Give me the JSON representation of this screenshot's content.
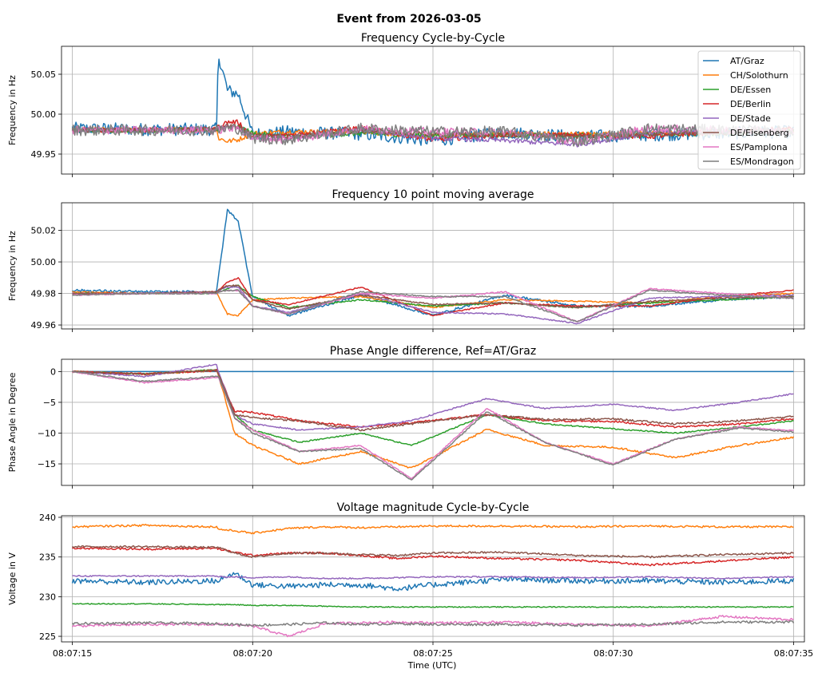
{
  "figure": {
    "suptitle": "Event from 2026-03-05",
    "xlabel": "Time (UTC)"
  },
  "series_meta": [
    {
      "name": "AT/Graz",
      "color": "#1f77b4"
    },
    {
      "name": "CH/Solothurn",
      "color": "#ff7f0e"
    },
    {
      "name": "DE/Essen",
      "color": "#2ca02c"
    },
    {
      "name": "DE/Berlin",
      "color": "#d62728"
    },
    {
      "name": "DE/Stade",
      "color": "#9467bd"
    },
    {
      "name": "DE/Eisenberg",
      "color": "#8c564b"
    },
    {
      "name": "ES/Pamplona",
      "color": "#e377c2"
    },
    {
      "name": "ES/Mondragon",
      "color": "#7f7f7f"
    }
  ],
  "x_ticks": [
    "08:07:15",
    "08:07:20",
    "08:07:25",
    "08:07:30",
    "08:07:35"
  ],
  "chart_data": [
    {
      "type": "line",
      "title": "Frequency Cycle-by-Cycle",
      "ylabel": "Frequency in Hz",
      "xlabel": "",
      "x": [
        0,
        2,
        4,
        4.05,
        4.3,
        4.6,
        5,
        6,
        8,
        10,
        12,
        14,
        16,
        18,
        20
      ],
      "xlim": [
        -0.3,
        20.3
      ],
      "ylim": [
        49.925,
        50.085
      ],
      "yticks": [
        49.95,
        50.0,
        50.05
      ],
      "yticklabels": [
        "49.95",
        "50.00",
        "50.05"
      ],
      "grid": true,
      "legend": "top-right",
      "series": [
        {
          "name": "AT/Graz",
          "values": [
            49.982,
            49.981,
            49.981,
            50.075,
            50.03,
            50.025,
            49.975,
            49.978,
            49.975,
            49.967,
            49.977,
            49.972,
            49.974,
            49.976,
            49.978
          ],
          "noise": 0.008
        },
        {
          "name": "CH/Solothurn",
          "values": [
            49.981,
            49.98,
            49.981,
            49.97,
            49.966,
            49.968,
            49.976,
            49.978,
            49.978,
            49.972,
            49.976,
            49.975,
            49.976,
            49.978,
            49.98
          ],
          "noise": 0.003
        },
        {
          "name": "DE/Essen",
          "values": [
            49.98,
            49.98,
            49.98,
            49.982,
            49.985,
            49.985,
            49.976,
            49.972,
            49.976,
            49.973,
            49.974,
            49.973,
            49.974,
            49.976,
            49.978
          ],
          "noise": 0.003
        },
        {
          "name": "DE/Berlin",
          "values": [
            49.98,
            49.98,
            49.981,
            49.985,
            49.99,
            49.99,
            49.972,
            49.974,
            49.983,
            49.968,
            49.974,
            49.974,
            49.972,
            49.978,
            49.982
          ],
          "noise": 0.003
        },
        {
          "name": "DE/Stade",
          "values": [
            49.98,
            49.98,
            49.981,
            49.983,
            49.984,
            49.983,
            49.97,
            49.97,
            49.98,
            49.97,
            49.967,
            49.962,
            49.976,
            49.978,
            49.979
          ],
          "noise": 0.003
        },
        {
          "name": "DE/Eisenberg",
          "values": [
            49.98,
            49.98,
            49.981,
            49.983,
            49.985,
            49.984,
            49.974,
            49.972,
            49.979,
            49.975,
            49.974,
            49.972,
            49.975,
            49.977,
            49.978
          ],
          "noise": 0.003
        },
        {
          "name": "ES/Pamplona",
          "values": [
            49.98,
            49.98,
            49.98,
            49.98,
            49.982,
            49.982,
            49.97,
            49.968,
            49.982,
            49.978,
            49.978,
            49.966,
            49.982,
            49.98,
            49.978
          ],
          "noise": 0.005
        },
        {
          "name": "ES/Mondragon",
          "values": [
            49.98,
            49.98,
            49.98,
            49.98,
            49.982,
            49.982,
            49.97,
            49.968,
            49.982,
            49.978,
            49.978,
            49.966,
            49.982,
            49.98,
            49.978
          ],
          "noise": 0.007
        }
      ]
    },
    {
      "type": "line",
      "title": "Frequency 10 point moving average",
      "ylabel": "Frequency in Hz",
      "xlabel": "",
      "x": [
        0,
        2,
        4,
        4.05,
        4.3,
        4.6,
        5,
        6,
        8,
        10,
        12,
        14,
        16,
        18,
        20
      ],
      "xlim": [
        -0.3,
        20.3
      ],
      "ylim": [
        49.9575,
        50.0375
      ],
      "yticks": [
        49.96,
        49.98,
        50.0,
        50.02
      ],
      "yticklabels": [
        "49.96",
        "49.98",
        "50.00",
        "50.02"
      ],
      "grid": true,
      "series": [
        {
          "name": "AT/Graz",
          "values": [
            49.982,
            49.981,
            49.981,
            49.99,
            50.033,
            50.026,
            49.978,
            49.966,
            49.979,
            49.966,
            49.979,
            49.972,
            49.972,
            49.976,
            49.978
          ],
          "noise": 0.0008
        },
        {
          "name": "CH/Solothurn",
          "values": [
            49.981,
            49.98,
            49.981,
            49.978,
            49.967,
            49.966,
            49.976,
            49.977,
            49.978,
            49.971,
            49.976,
            49.975,
            49.974,
            49.978,
            49.98
          ],
          "noise": 0.0004
        },
        {
          "name": "DE/Essen",
          "values": [
            49.98,
            49.98,
            49.98,
            49.981,
            49.983,
            49.985,
            49.978,
            49.971,
            49.976,
            49.972,
            49.974,
            49.971,
            49.974,
            49.976,
            49.978
          ],
          "noise": 0.0004
        },
        {
          "name": "DE/Berlin",
          "values": [
            49.98,
            49.98,
            49.981,
            49.982,
            49.987,
            49.99,
            49.976,
            49.973,
            49.984,
            49.966,
            49.974,
            49.972,
            49.972,
            49.978,
            49.982
          ],
          "noise": 0.0004
        },
        {
          "name": "DE/Stade",
          "values": [
            49.98,
            49.98,
            49.981,
            49.982,
            49.984,
            49.984,
            49.972,
            49.968,
            49.98,
            49.968,
            49.967,
            49.961,
            49.977,
            49.978,
            49.979
          ],
          "noise": 0.0004
        },
        {
          "name": "DE/Eisenberg",
          "values": [
            49.98,
            49.98,
            49.981,
            49.982,
            49.985,
            49.985,
            49.976,
            49.97,
            49.979,
            49.973,
            49.974,
            49.971,
            49.975,
            49.977,
            49.978
          ],
          "noise": 0.0004
        },
        {
          "name": "ES/Pamplona",
          "values": [
            49.979,
            49.98,
            49.98,
            49.981,
            49.982,
            49.982,
            49.972,
            49.967,
            49.98,
            49.977,
            49.981,
            49.962,
            49.983,
            49.98,
            49.977
          ],
          "noise": 0.0004
        },
        {
          "name": "ES/Mondragon",
          "values": [
            49.979,
            49.98,
            49.98,
            49.981,
            49.982,
            49.982,
            49.972,
            49.967,
            49.981,
            49.978,
            49.978,
            49.962,
            49.982,
            49.979,
            49.977
          ],
          "noise": 0.0004
        }
      ]
    },
    {
      "type": "line",
      "title": "Phase Angle difference, Ref=AT/Graz",
      "ylabel": "Phase Angle in Degree",
      "xlabel": "",
      "x": [
        0,
        2,
        4,
        4.05,
        4.5,
        5,
        6.3,
        8,
        9.4,
        11.5,
        13.1,
        15,
        16.7,
        18.5,
        20
      ],
      "xlim": [
        -0.3,
        20.3
      ],
      "ylim": [
        -18.5,
        2.0
      ],
      "yticks": [
        -15,
        -10,
        -5,
        0
      ],
      "yticklabels": [
        "−15",
        "−10",
        "−5",
        "0"
      ],
      "grid": true,
      "series": [
        {
          "name": "AT/Graz",
          "values": [
            0,
            0,
            0,
            0,
            0,
            0,
            0,
            0,
            0,
            0,
            0,
            0,
            0,
            0,
            0
          ],
          "noise": 0
        },
        {
          "name": "CH/Solothurn",
          "values": [
            0,
            -0.4,
            0.2,
            -0.5,
            -10,
            -12,
            -15,
            -13,
            -15.7,
            -9.4,
            -12,
            -12.3,
            -14,
            -12,
            -10.7
          ],
          "noise": 0.15
        },
        {
          "name": "DE/Essen",
          "values": [
            0,
            -0.4,
            0.3,
            -0.3,
            -7,
            -9.5,
            -11.5,
            -10,
            -12,
            -7,
            -8.5,
            -9.3,
            -10,
            -9,
            -8
          ],
          "noise": 0.1
        },
        {
          "name": "DE/Berlin",
          "values": [
            0,
            -0.4,
            0.2,
            -0.3,
            -6.5,
            -6.6,
            -8,
            -9,
            -8.3,
            -7,
            -8,
            -8.1,
            -9,
            -8.5,
            -7.7
          ],
          "noise": 0.15
        },
        {
          "name": "DE/Stade",
          "values": [
            0,
            -0.8,
            1.2,
            0,
            -7,
            -8.5,
            -9.5,
            -9,
            -8,
            -4.4,
            -6,
            -5.3,
            -6.3,
            -5,
            -3.6
          ],
          "noise": 0.1
        },
        {
          "name": "DE/Eisenberg",
          "values": [
            0,
            -0.4,
            0.2,
            -0.3,
            -7,
            -7.5,
            -8,
            -9.5,
            -8.5,
            -7,
            -7.8,
            -7.7,
            -8.5,
            -8,
            -7.3
          ],
          "noise": 0.15
        },
        {
          "name": "ES/Pamplona",
          "values": [
            0,
            -1.8,
            -1,
            -0.9,
            -7.5,
            -9.5,
            -13,
            -12,
            -17.4,
            -6,
            -11.5,
            -15,
            -11,
            -9,
            -9.6
          ],
          "noise": 0.1
        },
        {
          "name": "ES/Mondragon",
          "values": [
            0,
            -1.6,
            -0.8,
            -0.8,
            -7.5,
            -10,
            -13,
            -12.5,
            -17.6,
            -6.5,
            -11.5,
            -15.2,
            -11,
            -9.2,
            -9.8
          ],
          "noise": 0.1
        }
      ]
    },
    {
      "type": "line",
      "title": "Voltage magnitude Cycle-by-Cycle",
      "ylabel": "Voltage in V",
      "xlabel": "Time (UTC)",
      "x": [
        0,
        2,
        4,
        4.05,
        4.5,
        5,
        6,
        7,
        8,
        9,
        10,
        12,
        14,
        16,
        18,
        20
      ],
      "xlim": [
        -0.3,
        20.3
      ],
      "ylim": [
        224.3,
        240.2
      ],
      "yticks": [
        225,
        230,
        235,
        240
      ],
      "yticklabels": [
        "225",
        "230",
        "235",
        "240"
      ],
      "grid": true,
      "series": [
        {
          "name": "AT/Graz",
          "values": [
            232,
            231.8,
            232,
            232,
            233,
            231.5,
            231.3,
            231.5,
            231.5,
            231,
            231.5,
            232.2,
            232,
            232,
            231.8,
            232
          ],
          "noise": 0.35
        },
        {
          "name": "CH/Solothurn",
          "values": [
            238.8,
            239,
            238.8,
            238.5,
            238.3,
            238,
            238.6,
            238.8,
            238.7,
            238.8,
            238.9,
            238.9,
            238.8,
            238.9,
            238.8,
            238.8
          ],
          "noise": 0.12
        },
        {
          "name": "DE/Essen",
          "values": [
            229.1,
            229.1,
            229,
            229,
            229,
            228.9,
            228.9,
            228.8,
            228.7,
            228.7,
            228.7,
            228.7,
            228.7,
            228.7,
            228.7,
            228.7
          ],
          "noise": 0.06
        },
        {
          "name": "DE/Berlin",
          "values": [
            236.1,
            236,
            236.1,
            236,
            235.6,
            235.2,
            235.5,
            235.5,
            235.2,
            234.8,
            235.1,
            234.8,
            234.6,
            234,
            234.5,
            235
          ],
          "noise": 0.12
        },
        {
          "name": "DE/Stade",
          "values": [
            232.6,
            232.6,
            232.6,
            232.5,
            232.5,
            232.4,
            232.5,
            232.3,
            232.3,
            232.4,
            232.5,
            232.5,
            232.4,
            232.5,
            232.3,
            232.5
          ],
          "noise": 0.08
        },
        {
          "name": "DE/Eisenberg",
          "values": [
            236.3,
            236.3,
            236.2,
            236.2,
            235.5,
            235,
            235.5,
            235.5,
            235.3,
            235.2,
            235.5,
            235.6,
            235.2,
            235,
            235.3,
            235.5
          ],
          "noise": 0.12
        },
        {
          "name": "ES/Pamplona",
          "values": [
            226.3,
            226.5,
            226.5,
            226.5,
            226.4,
            226.3,
            225,
            226.6,
            226.7,
            226.8,
            226.7,
            226.8,
            226.5,
            226.3,
            227.5,
            227.1
          ],
          "noise": 0.15
        },
        {
          "name": "ES/Mondragon",
          "values": [
            226.6,
            226.7,
            226.6,
            226.6,
            226.5,
            226.4,
            226.5,
            226.7,
            226.5,
            226.6,
            226.5,
            226.5,
            226.4,
            226.5,
            226.8,
            226.8
          ],
          "noise": 0.15
        }
      ]
    }
  ]
}
